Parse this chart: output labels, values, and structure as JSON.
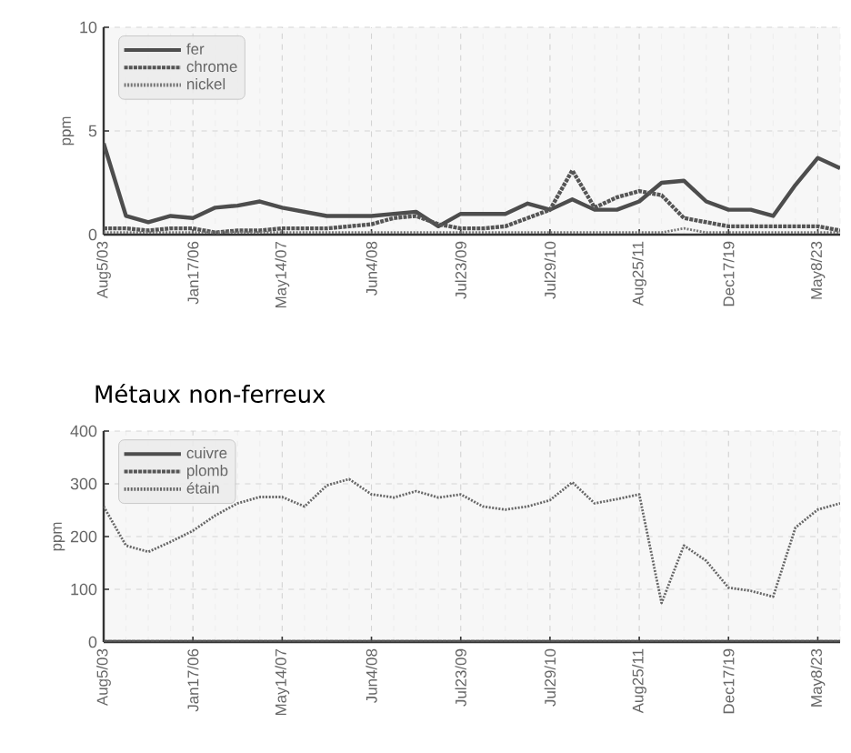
{
  "chart_data": [
    {
      "type": "line",
      "ylabel": "ppm",
      "categories": [
        "Aug5/03",
        null,
        null,
        null,
        "Jan17/06",
        null,
        null,
        null,
        "May14/07",
        null,
        null,
        null,
        "Jun4/08",
        null,
        null,
        null,
        "Jul23/09",
        null,
        null,
        null,
        "Jul29/10",
        null,
        null,
        null,
        "Aug25/11",
        null,
        null,
        null,
        "Dec17/19",
        null,
        null,
        null,
        "May8/23",
        null
      ],
      "ylim": [
        0,
        10
      ],
      "yticks": [
        0,
        5,
        10
      ],
      "grid": true,
      "legend": "top left",
      "marker": "none",
      "series": [
        {
          "name": "fer",
          "color": "#4d4d4d",
          "line_style": "solid",
          "values": [
            4.4,
            0.9,
            0.6,
            0.9,
            0.8,
            1.3,
            1.4,
            1.6,
            1.3,
            1.1,
            0.9,
            0.9,
            0.9,
            1.0,
            1.1,
            0.4,
            1.0,
            1.0,
            1.0,
            1.5,
            1.2,
            1.7,
            1.2,
            1.2,
            1.6,
            2.5,
            2.6,
            1.6,
            1.2,
            1.2,
            0.9,
            2.4,
            3.7,
            3.2
          ]
        },
        {
          "name": "chrome",
          "color": "#555555",
          "line_style": "dashed",
          "values": [
            0.3,
            0.3,
            0.2,
            0.3,
            0.3,
            0.1,
            0.2,
            0.2,
            0.3,
            0.3,
            0.3,
            0.4,
            0.5,
            0.8,
            0.9,
            0.5,
            0.3,
            0.3,
            0.4,
            0.8,
            1.2,
            3.1,
            1.3,
            1.8,
            2.1,
            1.9,
            0.8,
            0.6,
            0.4,
            0.4,
            0.4,
            0.4,
            0.4,
            0.2
          ]
        },
        {
          "name": "nickel",
          "color": "#777777",
          "line_style": "dotted",
          "values": [
            0.1,
            0.1,
            0.1,
            0.1,
            0.1,
            0.1,
            0.1,
            0.1,
            0.1,
            0.1,
            0.1,
            0.1,
            0.1,
            0.1,
            0.1,
            0.1,
            0.1,
            0.1,
            0.1,
            0.1,
            0.1,
            0.1,
            0.1,
            0.1,
            0.1,
            0.1,
            0.3,
            0.1,
            0.1,
            0.1,
            0.1,
            0.1,
            0.1,
            0.1
          ]
        }
      ]
    },
    {
      "type": "line",
      "title": "Métaux non-ferreux",
      "ylabel": "ppm",
      "categories": [
        "Aug5/03",
        null,
        null,
        null,
        "Jan17/06",
        null,
        null,
        null,
        "May14/07",
        null,
        null,
        null,
        "Jun4/08",
        null,
        null,
        null,
        "Jul23/09",
        null,
        null,
        null,
        "Jul29/10",
        null,
        null,
        null,
        "Aug25/11",
        null,
        null,
        null,
        "Dec17/19",
        null,
        null,
        null,
        "May8/23",
        null
      ],
      "ylim": [
        0,
        400
      ],
      "yticks": [
        0,
        100,
        200,
        300,
        400
      ],
      "grid": true,
      "legend": "top left",
      "marker": "none",
      "series": [
        {
          "name": "cuivre",
          "color": "#4d4d4d",
          "line_style": "solid",
          "values": [
            0,
            0,
            0,
            0,
            0,
            0,
            0,
            0,
            0,
            0,
            0,
            0,
            0,
            0,
            0,
            0,
            0,
            0,
            0,
            0,
            0,
            0,
            0,
            0,
            0,
            0,
            0,
            0,
            0,
            0,
            0,
            0,
            0,
            0
          ]
        },
        {
          "name": "plomb",
          "color": "#555555",
          "line_style": "dashed",
          "values": [
            0,
            0,
            0,
            0,
            0,
            0,
            0,
            0,
            0,
            0,
            0,
            0,
            0,
            0,
            0,
            0,
            0,
            0,
            0,
            0,
            0,
            0,
            0,
            0,
            0,
            0,
            0,
            0,
            0,
            0,
            0,
            0,
            0,
            0
          ]
        },
        {
          "name": "étain",
          "color": "#666666",
          "line_style": "dotted",
          "values": [
            257,
            183,
            171,
            190,
            211,
            240,
            263,
            275,
            275,
            257,
            297,
            309,
            280,
            274,
            286,
            274,
            280,
            257,
            251,
            257,
            269,
            303,
            263,
            271,
            280,
            74,
            183,
            154,
            103,
            97,
            86,
            217,
            251,
            263
          ]
        }
      ]
    }
  ]
}
